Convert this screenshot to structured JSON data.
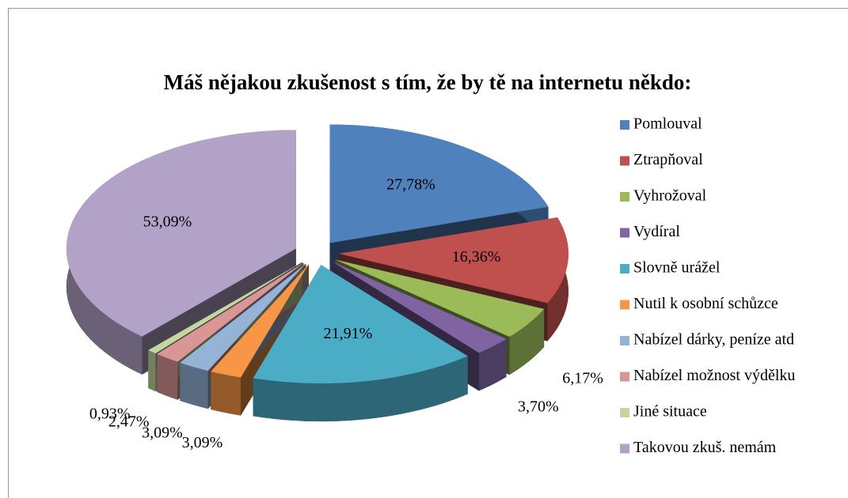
{
  "chart_data": {
    "type": "pie3d",
    "title": "Máš nějakou zkušenost s tím, že by tě na internetu někdo:",
    "categories": [
      "Pomlouval",
      "Ztrapňoval",
      "Vyhrožoval",
      "Vydíral",
      "Slovně urážel",
      "Nutil k osobní schůzce",
      "Nabízel dárky, peníze atd",
      "Nabízel možnost výdělku",
      "Jiné situace",
      "Takovou zkuš. nemám"
    ],
    "values": [
      27.78,
      16.36,
      6.17,
      3.7,
      21.91,
      3.09,
      3.09,
      2.47,
      0.93,
      53.09
    ],
    "value_labels": [
      "27,78%",
      "16,36%",
      "6,17%",
      "3,70%",
      "21,91%",
      "3,09%",
      "3,09%",
      "2,47%",
      "0,93%",
      "53,09%"
    ],
    "colors": [
      "#4f81bd",
      "#c0504d",
      "#9bbb59",
      "#8064a2",
      "#4bacc6",
      "#f79646",
      "#95b3d7",
      "#d99694",
      "#c3d69b",
      "#b2a2c7"
    ],
    "legend": "right"
  }
}
